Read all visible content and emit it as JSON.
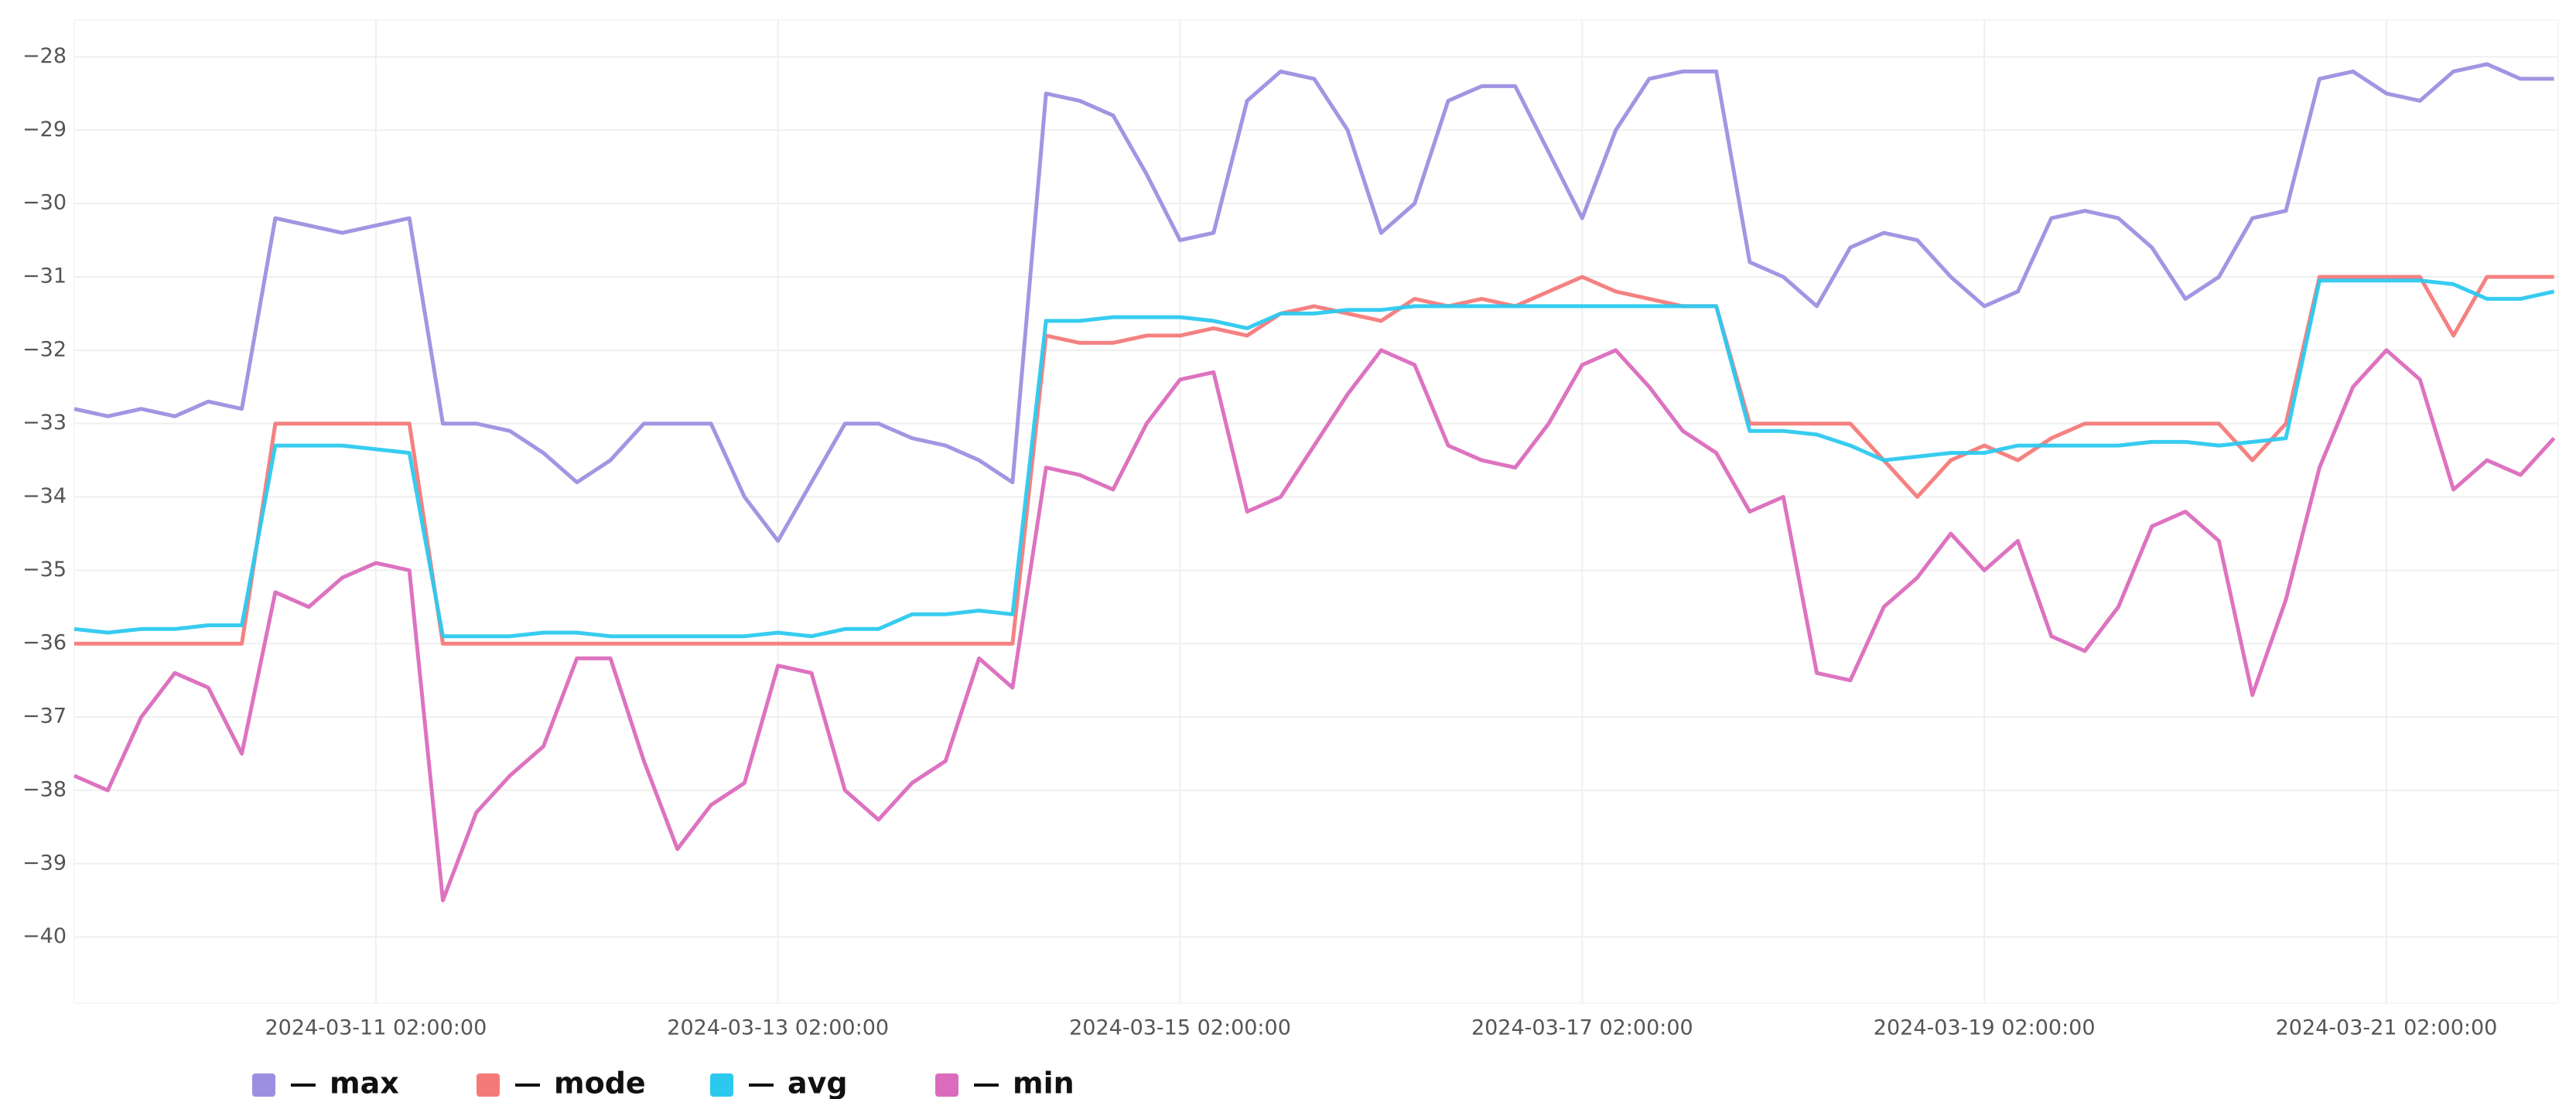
{
  "chart_data": {
    "type": "line",
    "x": [
      "2024-03-09 14:00:00",
      "2024-03-09 18:00:00",
      "2024-03-09 22:00:00",
      "2024-03-10 02:00:00",
      "2024-03-10 06:00:00",
      "2024-03-10 10:00:00",
      "2024-03-10 14:00:00",
      "2024-03-10 18:00:00",
      "2024-03-10 22:00:00",
      "2024-03-11 02:00:00",
      "2024-03-11 06:00:00",
      "2024-03-11 10:00:00",
      "2024-03-11 14:00:00",
      "2024-03-11 18:00:00",
      "2024-03-11 22:00:00",
      "2024-03-12 02:00:00",
      "2024-03-12 06:00:00",
      "2024-03-12 10:00:00",
      "2024-03-12 14:00:00",
      "2024-03-12 18:00:00",
      "2024-03-12 22:00:00",
      "2024-03-13 02:00:00",
      "2024-03-13 06:00:00",
      "2024-03-13 10:00:00",
      "2024-03-13 14:00:00",
      "2024-03-13 18:00:00",
      "2024-03-13 22:00:00",
      "2024-03-14 02:00:00",
      "2024-03-14 06:00:00",
      "2024-03-14 10:00:00",
      "2024-03-14 14:00:00",
      "2024-03-14 18:00:00",
      "2024-03-14 22:00:00",
      "2024-03-15 02:00:00",
      "2024-03-15 06:00:00",
      "2024-03-15 10:00:00",
      "2024-03-15 14:00:00",
      "2024-03-15 18:00:00",
      "2024-03-15 22:00:00",
      "2024-03-16 02:00:00",
      "2024-03-16 06:00:00",
      "2024-03-16 10:00:00",
      "2024-03-16 14:00:00",
      "2024-03-16 18:00:00",
      "2024-03-16 22:00:00",
      "2024-03-17 02:00:00",
      "2024-03-17 06:00:00",
      "2024-03-17 10:00:00",
      "2024-03-17 14:00:00",
      "2024-03-17 18:00:00",
      "2024-03-17 22:00:00",
      "2024-03-18 02:00:00",
      "2024-03-18 06:00:00",
      "2024-03-18 10:00:00",
      "2024-03-18 14:00:00",
      "2024-03-18 18:00:00",
      "2024-03-18 22:00:00",
      "2024-03-19 02:00:00",
      "2024-03-19 06:00:00",
      "2024-03-19 10:00:00",
      "2024-03-19 14:00:00",
      "2024-03-19 18:00:00",
      "2024-03-19 22:00:00",
      "2024-03-20 02:00:00",
      "2024-03-20 06:00:00",
      "2024-03-20 10:00:00",
      "2024-03-20 14:00:00",
      "2024-03-20 18:00:00",
      "2024-03-20 22:00:00",
      "2024-03-21 02:00:00",
      "2024-03-21 06:00:00",
      "2024-03-21 10:00:00",
      "2024-03-21 14:00:00",
      "2024-03-21 18:00:00",
      "2024-03-21 22:00:00"
    ],
    "series": [
      {
        "name": "max",
        "color": "#9d8fe0",
        "values": [
          -32.8,
          -32.9,
          -32.8,
          -32.9,
          -32.7,
          -32.8,
          -30.2,
          -30.3,
          -30.4,
          -30.3,
          -30.2,
          -33.0,
          -33.0,
          -33.1,
          -33.4,
          -33.8,
          -33.5,
          -33.0,
          -33.0,
          -33.0,
          -34.0,
          -34.6,
          -33.8,
          -33.0,
          -33.0,
          -33.2,
          -33.3,
          -33.5,
          -33.8,
          -28.5,
          -28.6,
          -28.8,
          -29.6,
          -30.5,
          -30.4,
          -28.6,
          -28.2,
          -28.3,
          -29.0,
          -30.4,
          -30.0,
          -28.6,
          -28.4,
          -28.4,
          -29.3,
          -30.2,
          -29.0,
          -28.3,
          -28.2,
          -28.2,
          -30.8,
          -31.0,
          -31.4,
          -30.6,
          -30.4,
          -30.5,
          -31.0,
          -31.4,
          -31.2,
          -30.2,
          -30.1,
          -30.2,
          -30.6,
          -31.3,
          -31.0,
          -30.2,
          -30.1,
          -28.3,
          -28.2,
          -28.5,
          -28.6,
          -28.2,
          -28.1,
          -28.3,
          -28.3
        ]
      },
      {
        "name": "mode",
        "color": "#f47a7a",
        "values": [
          -36.0,
          -36.0,
          -36.0,
          -36.0,
          -36.0,
          -36.0,
          -33.0,
          -33.0,
          -33.0,
          -33.0,
          -33.0,
          -36.0,
          -36.0,
          -36.0,
          -36.0,
          -36.0,
          -36.0,
          -36.0,
          -36.0,
          -36.0,
          -36.0,
          -36.0,
          -36.0,
          -36.0,
          -36.0,
          -36.0,
          -36.0,
          -36.0,
          -36.0,
          -31.8,
          -31.9,
          -31.9,
          -31.8,
          -31.8,
          -31.7,
          -31.8,
          -31.5,
          -31.4,
          -31.5,
          -31.6,
          -31.3,
          -31.4,
          -31.3,
          -31.4,
          -31.2,
          -31.0,
          -31.2,
          -31.3,
          -31.4,
          -31.4,
          -33.0,
          -33.0,
          -33.0,
          -33.0,
          -33.5,
          -34.0,
          -33.5,
          -33.3,
          -33.5,
          -33.2,
          -33.0,
          -33.0,
          -33.0,
          -33.0,
          -33.0,
          -33.5,
          -33.0,
          -31.0,
          -31.0,
          -31.0,
          -31.0,
          -31.8,
          -31.0,
          -31.0,
          -31.0
        ]
      },
      {
        "name": "avg",
        "color": "#2cc9ef",
        "values": [
          -35.8,
          -35.85,
          -35.8,
          -35.8,
          -35.75,
          -35.75,
          -33.3,
          -33.3,
          -33.3,
          -33.35,
          -33.4,
          -35.9,
          -35.9,
          -35.9,
          -35.85,
          -35.85,
          -35.9,
          -35.9,
          -35.9,
          -35.9,
          -35.9,
          -35.85,
          -35.9,
          -35.8,
          -35.8,
          -35.6,
          -35.6,
          -35.55,
          -35.6,
          -31.6,
          -31.6,
          -31.55,
          -31.55,
          -31.55,
          -31.6,
          -31.7,
          -31.5,
          -31.5,
          -31.45,
          -31.45,
          -31.4,
          -31.4,
          -31.4,
          -31.4,
          -31.4,
          -31.4,
          -31.4,
          -31.4,
          -31.4,
          -31.4,
          -33.1,
          -33.1,
          -33.15,
          -33.3,
          -33.5,
          -33.45,
          -33.4,
          -33.4,
          -33.3,
          -33.3,
          -33.3,
          -33.3,
          -33.25,
          -33.25,
          -33.3,
          -33.25,
          -33.2,
          -31.05,
          -31.05,
          -31.05,
          -31.05,
          -31.1,
          -31.3,
          -31.3,
          -31.2
        ]
      },
      {
        "name": "min",
        "color": "#db6bbd",
        "values": [
          -37.8,
          -38.0,
          -37.0,
          -36.4,
          -36.6,
          -37.5,
          -35.3,
          -35.5,
          -35.1,
          -34.9,
          -35.0,
          -39.5,
          -38.3,
          -37.8,
          -37.4,
          -36.2,
          -36.2,
          -37.6,
          -38.8,
          -38.2,
          -37.9,
          -36.3,
          -36.4,
          -38.0,
          -38.4,
          -37.9,
          -37.6,
          -36.2,
          -36.6,
          -33.6,
          -33.7,
          -33.9,
          -33.0,
          -32.4,
          -32.3,
          -34.2,
          -34.0,
          -33.3,
          -32.6,
          -32.0,
          -32.2,
          -33.3,
          -33.5,
          -33.6,
          -33.0,
          -32.2,
          -32.0,
          -32.5,
          -33.1,
          -33.4,
          -34.2,
          -34.0,
          -36.4,
          -36.5,
          -35.5,
          -35.1,
          -34.5,
          -35.0,
          -34.6,
          -35.9,
          -36.1,
          -35.5,
          -34.4,
          -34.2,
          -34.6,
          -36.7,
          -35.4,
          -33.6,
          -32.5,
          -32.0,
          -32.4,
          -33.9,
          -33.5,
          -33.7,
          -33.2
        ]
      }
    ],
    "xlim": [
      "2024-03-09 14:00:00",
      "2024-03-21 22:30:00"
    ],
    "xticks": [
      "2024-03-11 02:00:00",
      "2024-03-13 02:00:00",
      "2024-03-15 02:00:00",
      "2024-03-17 02:00:00",
      "2024-03-19 02:00:00",
      "2024-03-21 02:00:00"
    ],
    "ylim": [
      -40.9,
      -27.5
    ],
    "yticks": [
      {
        "value": -28,
        "label": "−28"
      },
      {
        "value": -29,
        "label": "−29"
      },
      {
        "value": -30,
        "label": "−30"
      },
      {
        "value": -31,
        "label": "−31"
      },
      {
        "value": -32,
        "label": "−32"
      },
      {
        "value": -33,
        "label": "−33"
      },
      {
        "value": -34,
        "label": "−34"
      },
      {
        "value": -35,
        "label": "−35"
      },
      {
        "value": -36,
        "label": "−36"
      },
      {
        "value": -37,
        "label": "−37"
      },
      {
        "value": -38,
        "label": "−38"
      },
      {
        "value": -39,
        "label": "−39"
      },
      {
        "value": -40,
        "label": "−40"
      }
    ],
    "grid": true,
    "legend": "bottom"
  }
}
